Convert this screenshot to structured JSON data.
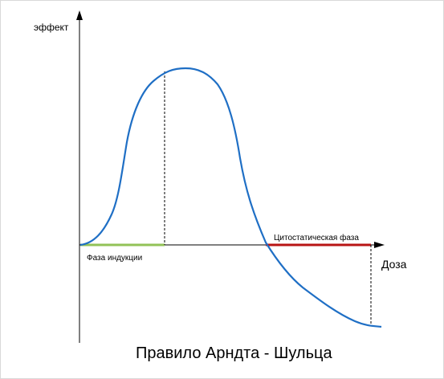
{
  "labels": {
    "y_axis": "эффект",
    "x_axis": "Доза",
    "induction_phase": "Фаза индукции",
    "cytostatic_phase": "Цитостатическая фаза",
    "title": "Правило Арндта - Шульца"
  },
  "colors": {
    "axis": "#000000",
    "curve": "#1f6fc5",
    "induction_segment": "#92c257",
    "cytostatic_segment": "#b81414",
    "guide": "#000000"
  }
}
